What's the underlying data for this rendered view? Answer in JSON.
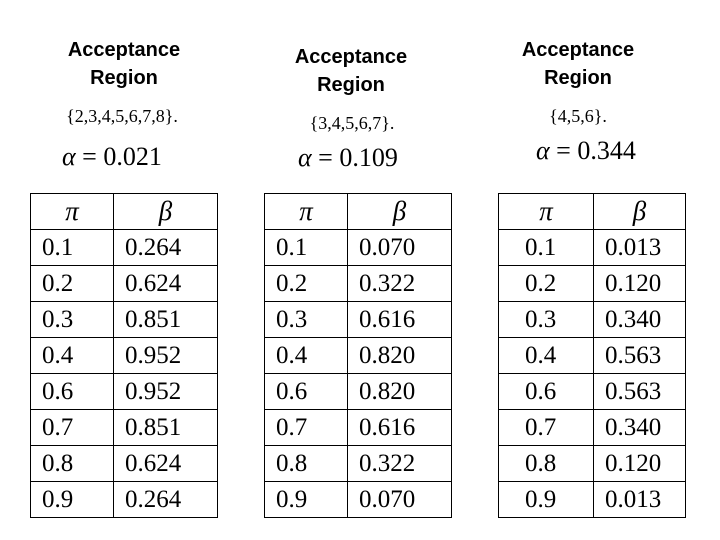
{
  "panels": [
    {
      "heading_line1": "Acceptance",
      "heading_line2": "Region",
      "region": "{2,3,4,5,6,7,8}.",
      "alpha_symbol": "α",
      "alpha_text": " = 0.021",
      "col_pi": "π",
      "col_beta": "β",
      "rows": [
        [
          "0.1",
          "0.264"
        ],
        [
          "0.2",
          "0.624"
        ],
        [
          "0.3",
          "0.851"
        ],
        [
          "0.4",
          "0.952"
        ],
        [
          "0.6",
          "0.952"
        ],
        [
          "0.7",
          "0.851"
        ],
        [
          "0.8",
          "0.624"
        ],
        [
          "0.9",
          "0.264"
        ]
      ]
    },
    {
      "heading_line1": "Acceptance",
      "heading_line2": "Region",
      "region": "{3,4,5,6,7}.",
      "alpha_symbol": "α",
      "alpha_text": " = 0.109",
      "col_pi": "π",
      "col_beta": "β",
      "rows": [
        [
          "0.1",
          "0.070"
        ],
        [
          "0.2",
          "0.322"
        ],
        [
          "0.3",
          "0.616"
        ],
        [
          "0.4",
          "0.820"
        ],
        [
          "0.6",
          "0.820"
        ],
        [
          "0.7",
          "0.616"
        ],
        [
          "0.8",
          "0.322"
        ],
        [
          "0.9",
          "0.070"
        ]
      ]
    },
    {
      "heading_line1": "Acceptance",
      "heading_line2": "Region",
      "region": "{4,5,6}.",
      "alpha_symbol": "α",
      "alpha_text": " = 0.344",
      "col_pi": "π",
      "col_beta": "β",
      "rows": [
        [
          "0.1",
          "0.013"
        ],
        [
          "0.2",
          "0.120"
        ],
        [
          "0.3",
          "0.340"
        ],
        [
          "0.4",
          "0.563"
        ],
        [
          "0.6",
          "0.563"
        ],
        [
          "0.7",
          "0.340"
        ],
        [
          "0.8",
          "0.120"
        ],
        [
          "0.9",
          "0.013"
        ]
      ]
    }
  ]
}
